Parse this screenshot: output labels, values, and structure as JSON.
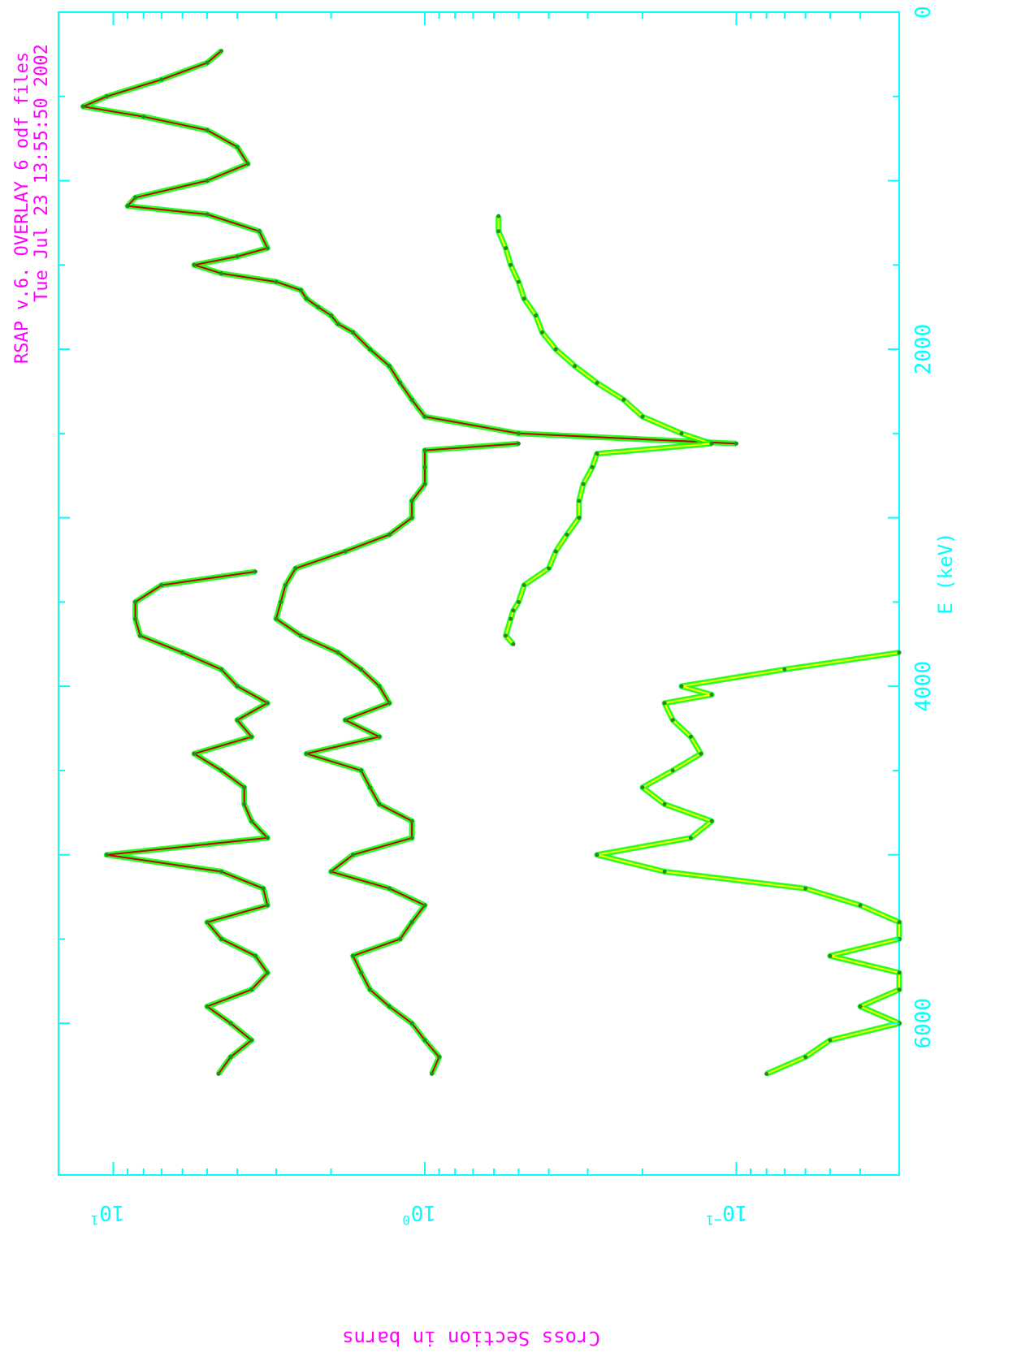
{
  "header": {
    "line1": "RSAP v.6.  OVERLAY 6 odf files",
    "line2": "Tue Jul 23 13:55:50 2002"
  },
  "colors": {
    "axis": "#00ffff",
    "header": "#ff00ff",
    "ylabel": "#ff00ff",
    "data_points": "#00ff00",
    "fit_curve": "#cc0000",
    "alt_curve": "#ffff00"
  },
  "chart_data": {
    "type": "line",
    "orientation": "rotated-90",
    "xlabel": "E (keV)",
    "ylabel": "Cross Section in barns",
    "xlim": [
      0,
      6900
    ],
    "x_ticks": [
      {
        "value": 0,
        "label": "0"
      },
      {
        "value": 2000,
        "label": "2000"
      },
      {
        "value": 4000,
        "label": "4000"
      },
      {
        "value": 6000,
        "label": "6000"
      }
    ],
    "y_scale": "log",
    "ylim": [
      0.03,
      15
    ],
    "y_ticks": [
      {
        "value": 10,
        "mantissa": "10",
        "exponent": "1"
      },
      {
        "value": 1,
        "mantissa": "10",
        "exponent": "0"
      },
      {
        "value": 0.1,
        "mantissa": "10",
        "exponent": "−1"
      }
    ],
    "series": [
      {
        "x": [
          230,
          300,
          400,
          500,
          560,
          620,
          700,
          800,
          900,
          1000,
          1100,
          1150,
          1200,
          1300,
          1400,
          1450,
          1500,
          1550,
          1600,
          1650,
          1700,
          1750,
          1800,
          1850,
          1900,
          2000,
          2100,
          2200,
          2300,
          2400,
          2500,
          2560
        ],
        "y": [
          4.5,
          5.0,
          7.0,
          10.5,
          12.5,
          8.0,
          5.0,
          4.0,
          3.7,
          5.0,
          8.5,
          9.0,
          5.0,
          3.4,
          3.2,
          4.0,
          5.5,
          4.5,
          3.0,
          2.5,
          2.4,
          2.2,
          2.0,
          1.9,
          1.7,
          1.5,
          1.3,
          1.2,
          1.1,
          1.0,
          0.5,
          0.1
        ]
      },
      {
        "x": [
          2560,
          2600,
          2700,
          2800,
          2900,
          3000,
          3100,
          3200,
          3300,
          3400,
          3500,
          3600,
          3700,
          3800,
          3900,
          4000,
          4100,
          4200,
          4300,
          4400,
          4500,
          4600,
          4700,
          4800,
          4900,
          5000,
          5100,
          5200,
          5300,
          5400,
          5500,
          5600,
          5700,
          5800,
          5900,
          6000,
          6100,
          6200,
          6300
        ],
        "y": [
          0.5,
          1.0,
          1.0,
          1.0,
          1.1,
          1.1,
          1.3,
          1.8,
          2.6,
          2.8,
          2.9,
          3.0,
          2.5,
          1.9,
          1.6,
          1.4,
          1.3,
          1.8,
          1.4,
          2.4,
          1.6,
          1.5,
          1.4,
          1.1,
          1.1,
          1.7,
          2.0,
          1.3,
          1.0,
          1.1,
          1.2,
          1.7,
          1.6,
          1.5,
          1.3,
          1.1,
          1.0,
          0.9,
          0.95
        ]
      },
      {
        "x": [
          3320,
          3400,
          3500,
          3600,
          3700,
          3800,
          3900,
          4000,
          4100,
          4200,
          4300,
          4400,
          4500,
          4600,
          4700,
          4800,
          4900,
          5000,
          5100,
          5200,
          5300,
          5400,
          5500,
          5600,
          5700,
          5800,
          5900,
          6000,
          6100,
          6200,
          6300
        ],
        "y": [
          3.5,
          7.0,
          8.5,
          8.5,
          8.2,
          6.0,
          4.5,
          4.0,
          3.2,
          4.0,
          3.6,
          5.5,
          4.5,
          3.8,
          3.8,
          3.6,
          3.2,
          10.5,
          4.5,
          3.3,
          3.2,
          5.0,
          4.5,
          3.5,
          3.2,
          3.6,
          5.0,
          4.2,
          3.6,
          4.2,
          4.6
        ]
      },
      {
        "x": [
          1210,
          1300,
          1400,
          1500,
          1600,
          1700,
          1800,
          1900,
          2000,
          2100,
          2200,
          2300,
          2400,
          2500,
          2560
        ],
        "y": [
          0.58,
          0.58,
          0.55,
          0.53,
          0.5,
          0.48,
          0.44,
          0.42,
          0.38,
          0.33,
          0.28,
          0.23,
          0.2,
          0.15,
          0.12
        ]
      },
      {
        "x": [
          2560,
          2620,
          2700,
          2800,
          2900,
          3000,
          3100,
          3200,
          3300,
          3400,
          3500,
          3550,
          3600,
          3700,
          3750
        ],
        "y": [
          0.12,
          0.28,
          0.29,
          0.31,
          0.32,
          0.32,
          0.35,
          0.38,
          0.4,
          0.48,
          0.5,
          0.52,
          0.53,
          0.55,
          0.52
        ]
      },
      {
        "x": [
          3800,
          3900,
          4000,
          4050,
          4100,
          4200,
          4300,
          4400,
          4500,
          4600,
          4700,
          4800,
          4900,
          5000,
          5100,
          5200,
          5300,
          5400,
          5500,
          5600,
          5700,
          5800,
          5900,
          6000,
          6100,
          6200,
          6300
        ],
        "y": [
          0.03,
          0.07,
          0.15,
          0.12,
          0.17,
          0.16,
          0.14,
          0.13,
          0.16,
          0.2,
          0.17,
          0.12,
          0.14,
          0.28,
          0.17,
          0.06,
          0.04,
          0.03,
          0.03,
          0.05,
          0.03,
          0.03,
          0.04,
          0.03,
          0.05,
          0.06,
          0.08
        ]
      }
    ]
  }
}
